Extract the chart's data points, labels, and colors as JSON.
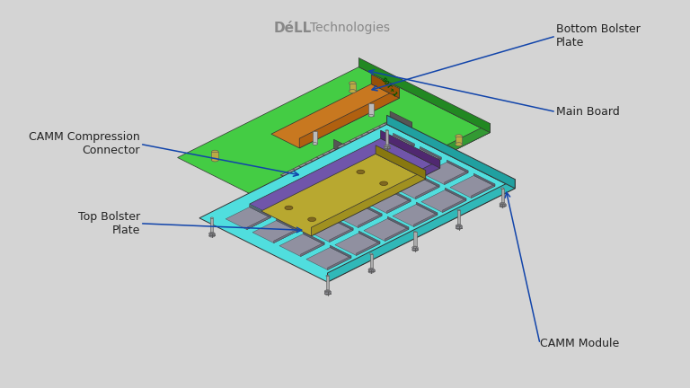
{
  "background_color": "#d4d4d4",
  "labels": {
    "camm_module": "CAMM Module",
    "top_bolster": "Top Bolster\nPlate",
    "camm_compression": "CAMM Compression\nConnector",
    "main_board": "Main Board",
    "bottom_bolster": "Bottom Bolster\nPlate"
  },
  "colors": {
    "background": "#d4d4d4",
    "camm_module_top": "#50dede",
    "camm_module_side_l": "#30b8b8",
    "camm_module_side_r": "#20a0a0",
    "main_board_top": "#44cc44",
    "main_board_side_l": "#339933",
    "main_board_side_r": "#228822",
    "top_bolster_top": "#b8a830",
    "top_bolster_side_l": "#a09020",
    "top_bolster_side_r": "#887810",
    "purple_layer_top": "#7055aa",
    "purple_layer_side_l": "#604090",
    "purple_layer_side_r": "#502870",
    "connector_top": "#999999",
    "connector_side_l": "#666666",
    "connector_side_r": "#555555",
    "bottom_bolster_top": "#c87820",
    "bottom_bolster_side_l": "#b06010",
    "bottom_bolster_side_r": "#985008",
    "chip_color": "#9090a0",
    "chip_side_l": "#707080",
    "chip_side_r": "#606070",
    "screw_color": "#909098",
    "standoff_color": "#aaaaaa",
    "arrow_color": "#1144aa",
    "label_color": "#222222",
    "dell_color": "#888888",
    "edge_color": "#333333"
  },
  "figsize": [
    7.68,
    4.32
  ],
  "dpi": 100,
  "ox": 390,
  "oy": 235,
  "chip_rows": 4,
  "chip_cols": 6
}
